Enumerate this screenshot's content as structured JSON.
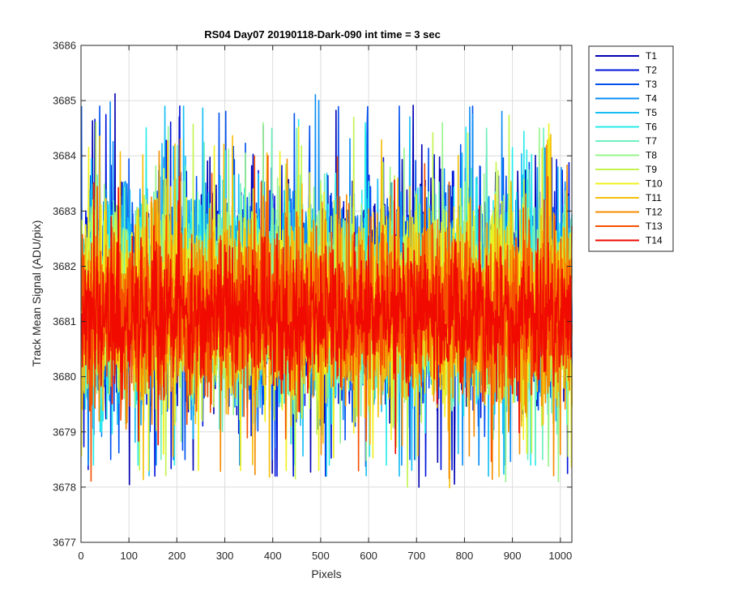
{
  "chart_data": {
    "type": "line",
    "title": "RS04 Day07 20190118-Dark-090 int time = 3 sec",
    "xlabel": "Pixels",
    "ylabel": "Track Mean Signal (ADU/pix)",
    "xlim": [
      0,
      1024
    ],
    "ylim": [
      3677,
      3686
    ],
    "xticks": [
      0,
      100,
      200,
      300,
      400,
      500,
      600,
      700,
      800,
      900,
      1000
    ],
    "yticks": [
      3677,
      3678,
      3679,
      3680,
      3681,
      3682,
      3683,
      3684,
      3685,
      3686
    ],
    "grid": true,
    "legend_position": "outside-top-right",
    "series_model": {
      "description": "noisy per-pixel signal",
      "x_start": 1,
      "x_end": 1024,
      "x_step": 1
    },
    "series": [
      {
        "name": "T1",
        "color": "#0000b3",
        "mean": 3681.5,
        "noise_sd": 0.95,
        "min": 3678.0,
        "max": 3685.3
      },
      {
        "name": "T2",
        "color": "#0014d9",
        "mean": 3681.5,
        "noise_sd": 0.95,
        "min": 3678.2,
        "max": 3685.0
      },
      {
        "name": "T3",
        "color": "#0050f0",
        "mean": 3681.5,
        "noise_sd": 0.95,
        "min": 3678.5,
        "max": 3684.9
      },
      {
        "name": "T4",
        "color": "#0a8cf5",
        "mean": 3681.5,
        "noise_sd": 0.95,
        "min": 3678.4,
        "max": 3685.4
      },
      {
        "name": "T5",
        "color": "#14bef5",
        "mean": 3681.4,
        "noise_sd": 0.95,
        "min": 3678.2,
        "max": 3684.9
      },
      {
        "name": "T6",
        "color": "#28ebeb",
        "mean": 3681.4,
        "noise_sd": 0.9,
        "min": 3678.4,
        "max": 3684.8
      },
      {
        "name": "T7",
        "color": "#6ef0be",
        "mean": 3681.4,
        "noise_sd": 0.9,
        "min": 3678.5,
        "max": 3684.5
      },
      {
        "name": "T8",
        "color": "#96f58c",
        "mean": 3681.4,
        "noise_sd": 0.9,
        "min": 3678.1,
        "max": 3684.6
      },
      {
        "name": "T9",
        "color": "#c3f550",
        "mean": 3681.3,
        "noise_sd": 0.9,
        "min": 3678.0,
        "max": 3685.9
      },
      {
        "name": "T10",
        "color": "#f0f01e",
        "mean": 3681.3,
        "noise_sd": 0.85,
        "min": 3678.3,
        "max": 3685.1
      },
      {
        "name": "T11",
        "color": "#f5be0a",
        "mean": 3681.2,
        "noise_sd": 0.85,
        "min": 3677.3,
        "max": 3684.4
      },
      {
        "name": "T12",
        "color": "#f58c00",
        "mean": 3681.2,
        "noise_sd": 0.8,
        "min": 3677.9,
        "max": 3684.3
      },
      {
        "name": "T13",
        "color": "#f55000",
        "mean": 3681.1,
        "noise_sd": 0.75,
        "min": 3677.8,
        "max": 3684.0
      },
      {
        "name": "T14",
        "color": "#f00a00",
        "mean": 3681.1,
        "noise_sd": 0.6,
        "min": 3677.9,
        "max": 3684.2
      }
    ]
  }
}
